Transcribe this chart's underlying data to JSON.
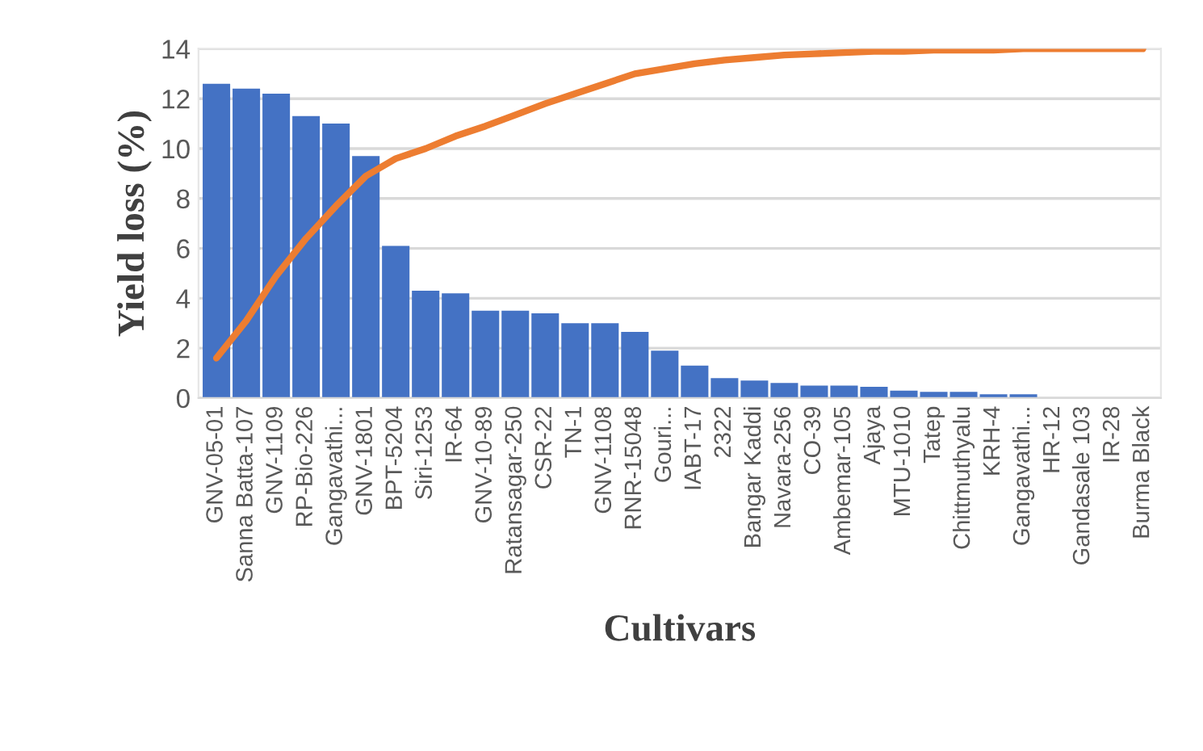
{
  "chart_data": {
    "type": "bar",
    "xlabel": "Cultivars",
    "ylabel": "Yield loss (%)",
    "categories": [
      "GNV-05-01",
      "Sanna Batta-107",
      "GNV-1109",
      "RP-Bio-226",
      "Gangavathi...",
      "GNV-1801",
      "BPT-5204",
      "Siri-1253",
      "IR-64",
      "GNV-10-89",
      "Ratansagar-250",
      "CSR-22",
      "TN-1",
      "GNV-1108",
      "RNR-15048",
      "Gouri...",
      "IABT-17",
      "2322",
      "Bangar Kaddi",
      "Navara-256",
      "CO-39",
      "Ambemar-105",
      "Ajaya",
      "MTU-1010",
      "Tatep",
      "Chittmuthyalu",
      "KRH-4",
      "Gangavathi...",
      "HR-12",
      "Gandasale 103",
      "IR-28",
      "Burma Black"
    ],
    "series": [
      {
        "color": "#4472c4",
        "values": [
          12.6,
          12.4,
          12.2,
          11.3,
          11.0,
          9.7,
          6.1,
          4.3,
          4.2,
          3.5,
          3.5,
          3.4,
          3.0,
          3.0,
          2.65,
          1.9,
          1.3,
          0.8,
          0.7,
          0.6,
          0.5,
          0.5,
          0.45,
          0.3,
          0.25,
          0.25,
          0.15,
          0.15,
          0,
          0,
          0,
          0
        ]
      },
      {
        "type": "line",
        "color": "#ed7d31",
        "values": [
          1.6,
          3.1,
          4.9,
          6.4,
          7.7,
          8.9,
          9.6,
          10.0,
          10.5,
          10.9,
          11.35,
          11.8,
          12.2,
          12.6,
          13.0,
          13.2,
          13.4,
          13.55,
          13.65,
          13.75,
          13.8,
          13.85,
          13.9,
          13.9,
          13.95,
          13.95,
          13.95,
          14.0,
          14.0,
          14.0,
          14.0,
          14.0
        ]
      }
    ],
    "ylim": [
      0,
      14
    ],
    "yticks": [
      0,
      2,
      4,
      6,
      8,
      10,
      12,
      14
    ],
    "grid": "y"
  }
}
